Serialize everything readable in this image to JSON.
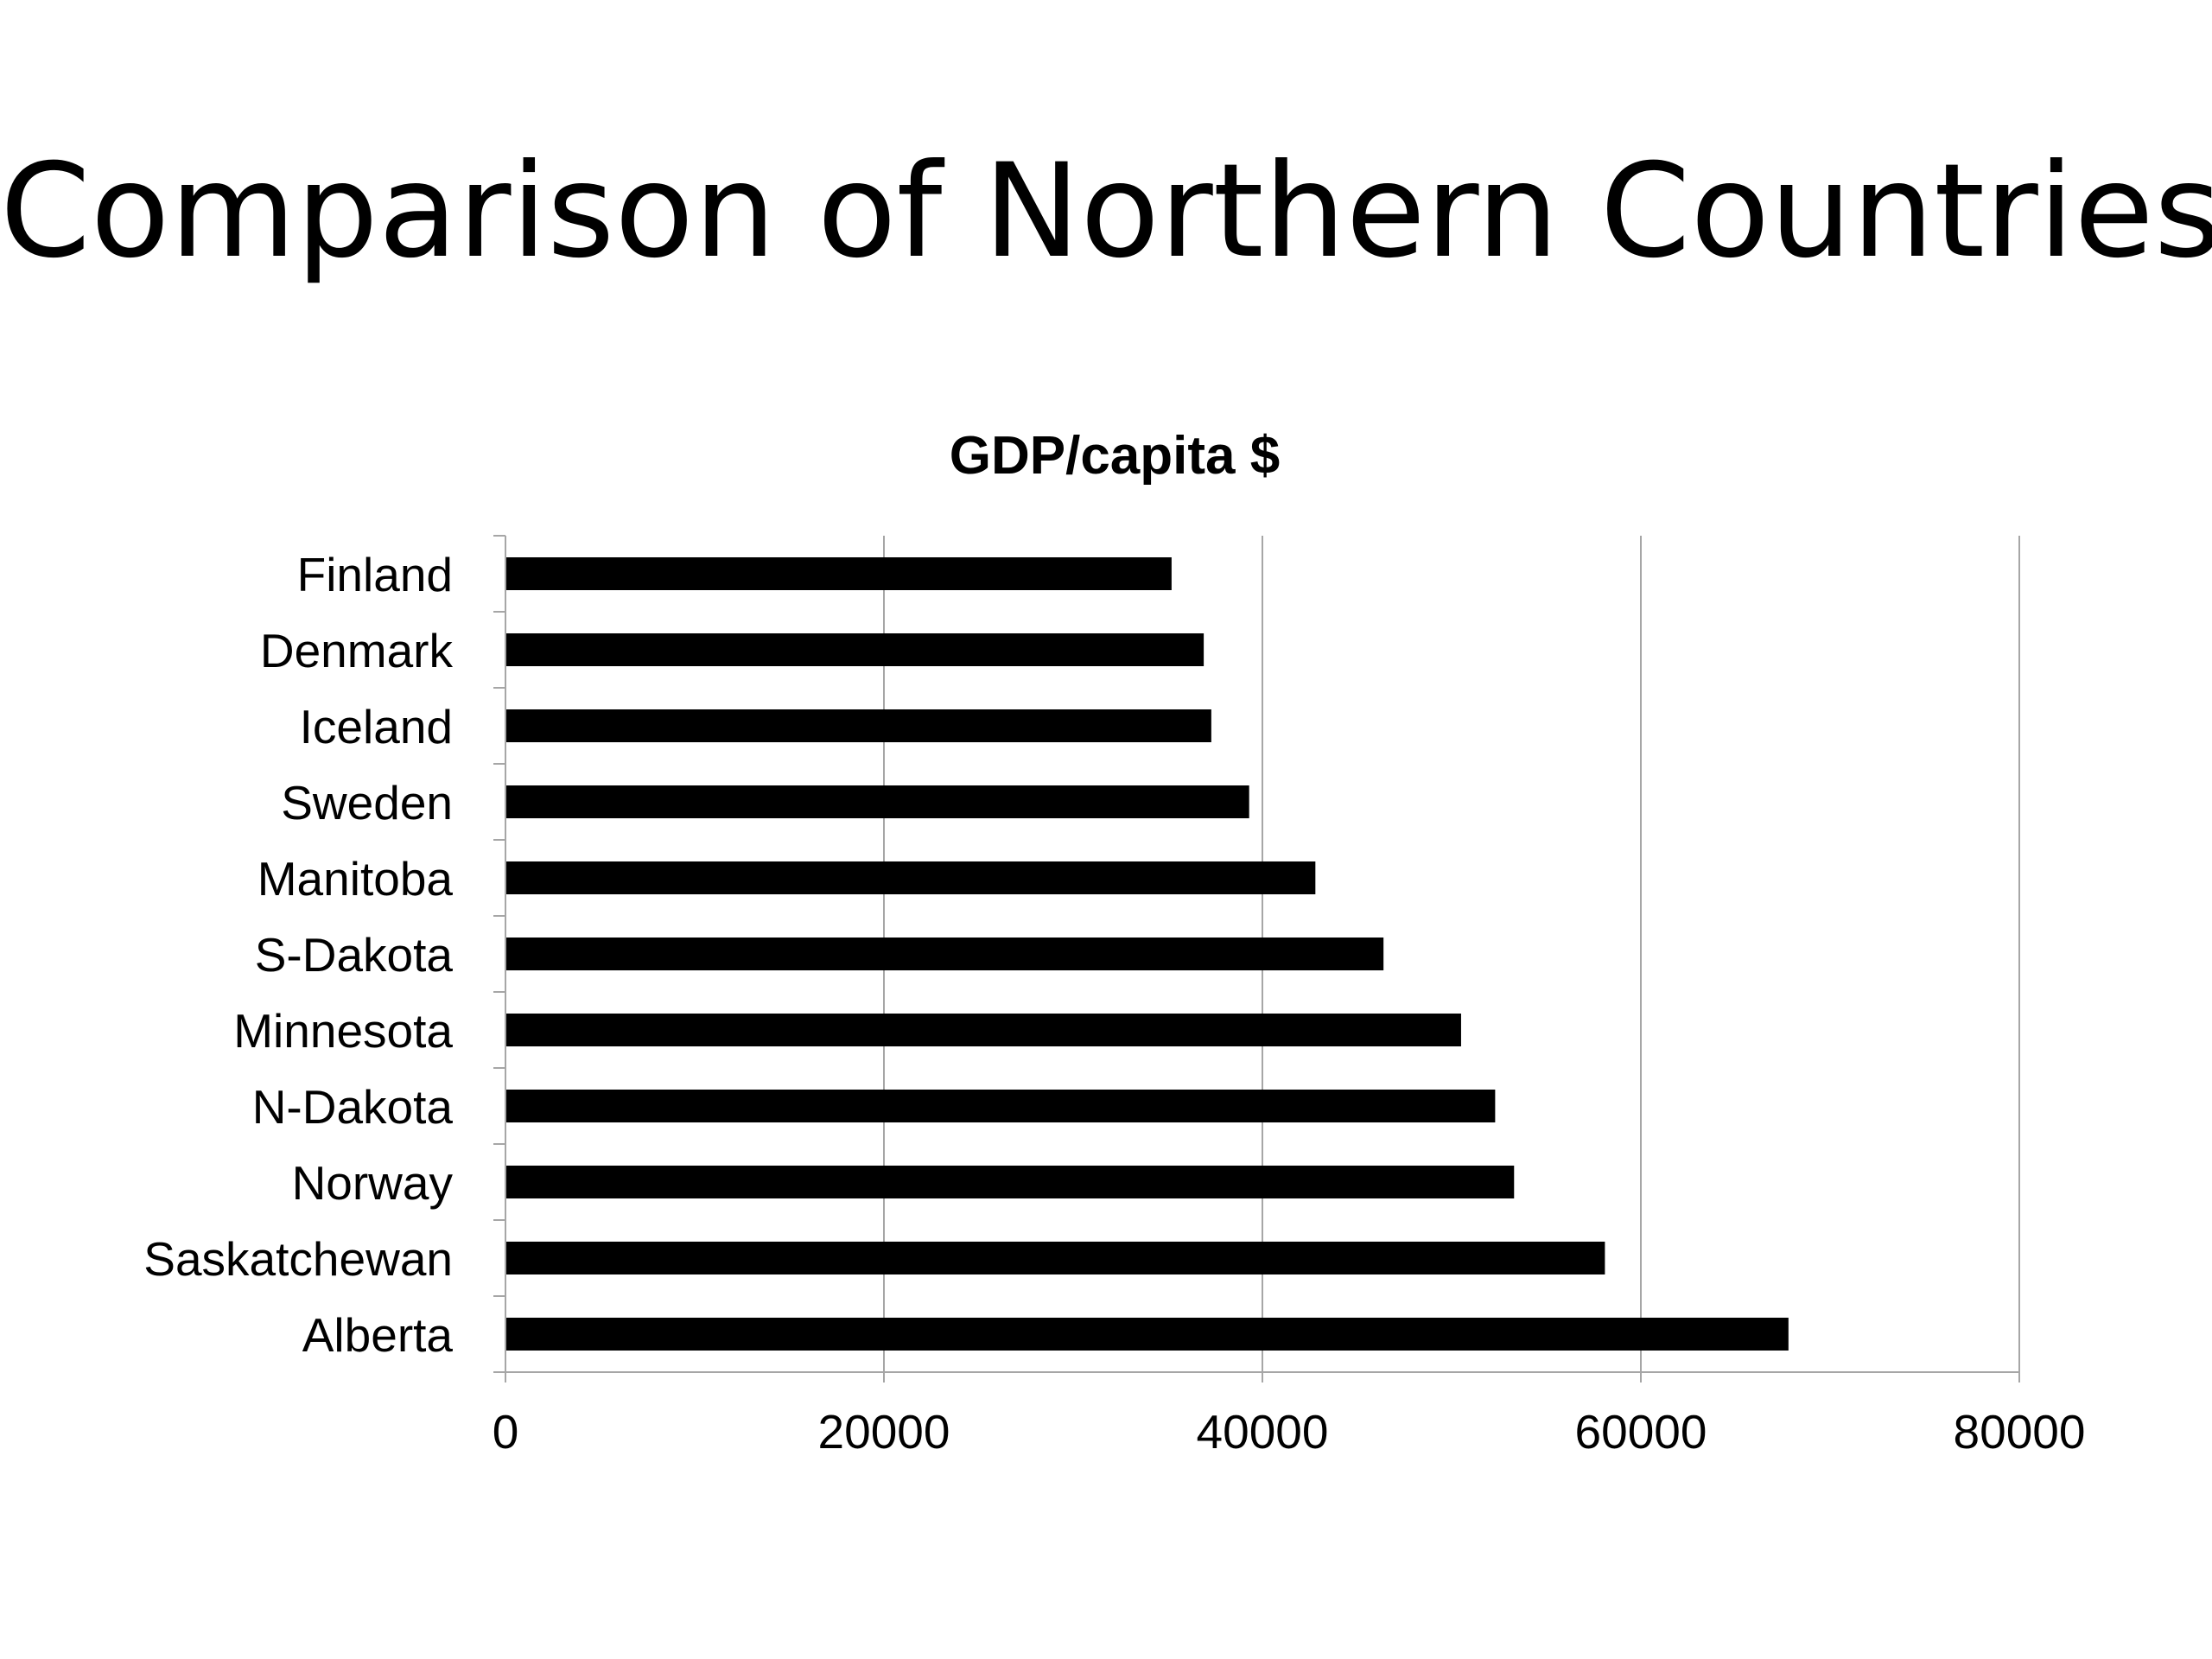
{
  "slide": {
    "title": "Comparison of Northern Countries"
  },
  "chart_data": {
    "type": "bar",
    "orientation": "horizontal",
    "title": "GDP/capita $",
    "xlabel": "",
    "ylabel": "",
    "categories": [
      "Finland",
      "Denmark",
      "Iceland",
      "Sweden",
      "Manitoba",
      "S-Dakota",
      "Minnesota",
      "N-Dakota",
      "Norway",
      "Saskatchewan",
      "Alberta"
    ],
    "values": [
      35200,
      36900,
      37300,
      39300,
      42800,
      46400,
      50500,
      52300,
      53300,
      58100,
      67800
    ],
    "xlim": [
      0,
      80000
    ],
    "xticks": [
      0,
      20000,
      40000,
      60000,
      80000
    ],
    "xtick_labels": [
      "0",
      "20000",
      "40000",
      "60000",
      "80000"
    ],
    "grid": "vertical",
    "legend": "none",
    "colors": {
      "bar": "#000000",
      "gridline": "#a6a6a6",
      "axis": "#a6a6a6",
      "text": "#000000"
    }
  }
}
